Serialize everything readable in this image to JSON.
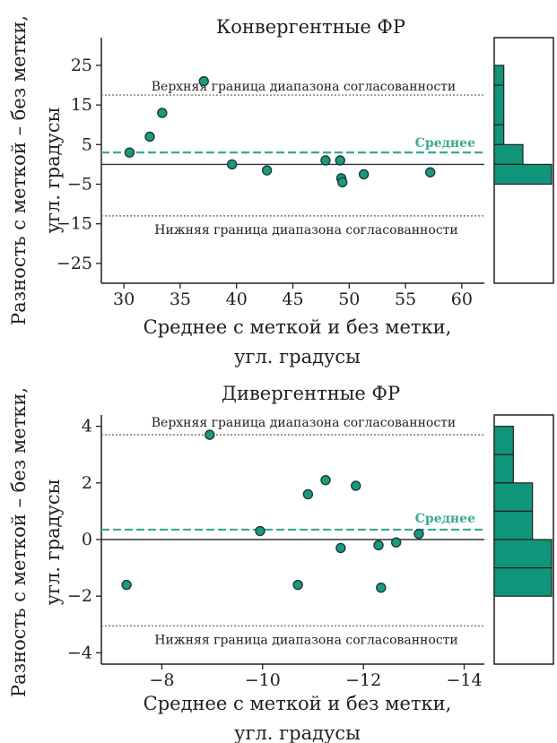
{
  "colors": {
    "point": "#1a9a80",
    "point_stroke": "#1d3b35",
    "mean": "#3aaa90",
    "limit": "#7a7a7a",
    "zero": "#333333",
    "hist_fill": "#10957a",
    "axis": "#231f20"
  },
  "chart_data": [
    {
      "type": "scatter",
      "title": "Конвергентные ФР",
      "ylabel": [
        "Разность с меткой – без метки,",
        "угл. градусы"
      ],
      "xlabel": [
        "Среднее с меткой и без метки,",
        "угл. градусы"
      ],
      "xlim": [
        28,
        62
      ],
      "ylim": [
        -30,
        32
      ],
      "x_reversed": false,
      "xticks": [
        30,
        35,
        40,
        45,
        50,
        55,
        60
      ],
      "xtick_labels": [
        "30",
        "35",
        "40",
        "45",
        "50",
        "55",
        "60"
      ],
      "yticks": [
        25,
        15,
        5,
        -5,
        -15,
        -25
      ],
      "ytick_labels": [
        "25",
        "15",
        "5",
        "−5",
        "−15",
        "−25"
      ],
      "x": [
        30.5,
        32.3,
        33.4,
        37.1,
        39.6,
        42.7,
        47.9,
        49.2,
        49.3,
        49.4,
        51.3,
        57.2
      ],
      "y": [
        3,
        7,
        13,
        21,
        0,
        -1.5,
        1,
        1,
        -3.5,
        -4.5,
        -2.5,
        -2
      ],
      "mean": 3,
      "upper_loa": 17.5,
      "lower_loa": -13,
      "upper_label": "Верхняя граница диапазона согласованности",
      "lower_label": "Нижняя граница диапазона согласованности",
      "mean_label": "Среднее",
      "histogram": {
        "bins": [
          [
            20,
            25
          ],
          [
            10,
            20
          ],
          [
            5,
            10
          ],
          [
            0,
            5
          ],
          [
            -5,
            0
          ]
        ],
        "counts": [
          1,
          1,
          1,
          3,
          6
        ]
      }
    },
    {
      "type": "scatter",
      "title": "Дивергентные ФР",
      "ylabel": [
        "Разность с меткой – без метки,",
        "угл. градусы"
      ],
      "xlabel": [
        "Среднее с меткой и без метки,",
        "угл. градусы"
      ],
      "xlim": [
        -6.8,
        -14.4
      ],
      "ylim": [
        -4.4,
        4.4
      ],
      "x_reversed": true,
      "xticks": [
        -8,
        -10,
        -12,
        -14
      ],
      "xtick_labels": [
        "−8",
        "−10",
        "−12",
        "−14"
      ],
      "yticks": [
        4,
        2,
        0,
        -2,
        -4
      ],
      "ytick_labels": [
        "4",
        "2",
        "0",
        "−2",
        "−4"
      ],
      "x": [
        -7.3,
        -8.95,
        -9.95,
        -10.7,
        -10.9,
        -11.25,
        -11.55,
        -11.85,
        -12.3,
        -12.35,
        -12.65,
        -13.1
      ],
      "y": [
        -1.6,
        3.7,
        0.3,
        -1.6,
        1.6,
        2.1,
        -0.3,
        1.9,
        -0.2,
        -1.7,
        -0.1,
        0.2
      ],
      "mean": 0.35,
      "upper_loa": 3.7,
      "lower_loa": -3.05,
      "upper_label": "Верхняя граница диапазона согласованности",
      "lower_label": "Нижняя граница диапазона согласованности",
      "mean_label": "Среднее",
      "histogram": {
        "bins": [
          [
            3,
            4
          ],
          [
            2,
            3
          ],
          [
            1,
            2
          ],
          [
            0,
            1
          ],
          [
            -1,
            0
          ],
          [
            -2,
            -1
          ]
        ],
        "counts": [
          1,
          1,
          2,
          2,
          3,
          3
        ]
      }
    }
  ]
}
